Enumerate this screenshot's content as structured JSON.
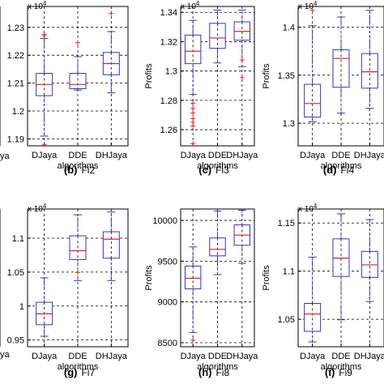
{
  "chart_data": [
    {
      "id": "b",
      "type": "boxplot",
      "caption_letter": "(b)",
      "caption_name": "Fi2",
      "ylabel": "Profits",
      "xlabel": "algorithms",
      "multiplier": "x 10",
      "multiplier_exp": "4",
      "categories": [
        "DJaya",
        "DDE",
        "DHJaya"
      ],
      "ylim": [
        1.1875,
        1.2375
      ],
      "yticks": [
        "1.19",
        "1.2",
        "1.21",
        "1.22",
        "1.23"
      ],
      "ytick_values": [
        1.19,
        1.2,
        1.21,
        1.22,
        1.23
      ],
      "grid": true,
      "boxes": [
        {
          "whisker_low": 1.191,
          "q1": 1.2055,
          "median": 1.2095,
          "q3": 1.2135,
          "whisker_high": 1.226,
          "outliers": [
            1.188,
            1.227,
            1.2275
          ]
        },
        {
          "whisker_low": 1.2075,
          "q1": 1.208,
          "median": 1.2095,
          "q3": 1.2135,
          "whisker_high": 1.2195,
          "outliers": [
            1.2245
          ]
        },
        {
          "whisker_low": 1.2065,
          "q1": 1.213,
          "median": 1.217,
          "q3": 1.221,
          "whisker_high": 1.2285,
          "outliers": [
            1.235
          ]
        }
      ]
    },
    {
      "id": "c",
      "type": "boxplot",
      "caption_letter": "(c)",
      "caption_name": "Fi3",
      "ylabel": "Profits",
      "xlabel": "algorithms",
      "multiplier": "x 10",
      "multiplier_exp": "4",
      "categories": [
        "DJaya",
        "DDE",
        "DHJaya"
      ],
      "ylim": [
        1.249,
        1.344
      ],
      "yticks": [
        "1.26",
        "1.28",
        "1.3",
        "1.32",
        "1.34"
      ],
      "ytick_values": [
        1.26,
        1.28,
        1.3,
        1.32,
        1.34
      ],
      "grid": true,
      "boxes": [
        {
          "whisker_low": 1.284,
          "q1": 1.305,
          "median": 1.3135,
          "q3": 1.3245,
          "whisker_high": 1.3345,
          "outliers": [
            1.2505,
            1.2625,
            1.265,
            1.2675,
            1.2715,
            1.2745,
            1.278
          ]
        },
        {
          "whisker_low": 1.3055,
          "q1": 1.3155,
          "median": 1.3225,
          "q3": 1.3325,
          "whisker_high": 1.3415,
          "outliers": []
        },
        {
          "whisker_low": 1.303,
          "q1": 1.321,
          "median": 1.327,
          "q3": 1.3335,
          "whisker_high": 1.3415,
          "outliers": [
            1.2955,
            1.3075
          ]
        }
      ]
    },
    {
      "id": "d",
      "type": "boxplot",
      "caption_letter": "(d)",
      "caption_name": "Fi4",
      "ylabel": "Profits",
      "xlabel": "algorithms",
      "multiplier": "x 10",
      "multiplier_exp": "4",
      "categories": [
        "DJaya",
        "DDE",
        "DHJaya"
      ],
      "ylim": [
        1.2765,
        1.4215
      ],
      "yticks": [
        "1.3",
        "1.35",
        "1.4"
      ],
      "ytick_values": [
        1.3,
        1.35,
        1.4
      ],
      "grid": true,
      "boxes": [
        {
          "whisker_low": 1.3015,
          "q1": 1.3065,
          "median": 1.3205,
          "q3": 1.3405,
          "whisker_high": 1.4015,
          "outliers": [
            1.4175
          ]
        },
        {
          "whisker_low": 1.3105,
          "q1": 1.3375,
          "median": 1.3675,
          "q3": 1.3765,
          "whisker_high": 1.4105,
          "outliers": []
        },
        {
          "whisker_low": 1.3155,
          "q1": 1.3365,
          "median": 1.3535,
          "q3": 1.3725,
          "whisker_high": 1.4175,
          "outliers": []
        }
      ]
    },
    {
      "id": "g",
      "type": "boxplot",
      "caption_letter": "(g)",
      "caption_name": "Fi7",
      "ylabel": "",
      "xlabel": "algorithms",
      "multiplier": "x 10",
      "multiplier_exp": "4",
      "categories": [
        "DJaya",
        "DDE",
        "DHJaya"
      ],
      "ylim": [
        0.94,
        1.143
      ],
      "yticks": [
        "0.95",
        "1",
        "1.05",
        "1.1"
      ],
      "ytick_values": [
        0.95,
        1.0,
        1.05,
        1.1
      ],
      "grid": true,
      "boxes": [
        {
          "whisker_low": 0.9555,
          "q1": 0.9725,
          "median": 0.9885,
          "q3": 1.0055,
          "whisker_high": 1.0415,
          "outliers": []
        },
        {
          "whisker_low": 1.0375,
          "q1": 1.0685,
          "median": 1.0815,
          "q3": 1.1035,
          "whisker_high": 1.1345,
          "outliers": [
            1.0495
          ]
        },
        {
          "whisker_low": 1.0375,
          "q1": 1.0705,
          "median": 1.0985,
          "q3": 1.1095,
          "whisker_high": 1.1385,
          "outliers": []
        }
      ]
    },
    {
      "id": "h",
      "type": "boxplot",
      "caption_letter": "(h)",
      "caption_name": "Fi8",
      "ylabel": "Profits",
      "xlabel": "algorithms",
      "multiplier": "",
      "multiplier_exp": "",
      "categories": [
        "DJaya",
        "DDE",
        "DHJaya"
      ],
      "ylim": [
        8450,
        10140
      ],
      "yticks": [
        "8500",
        "9000",
        "9500",
        "10000"
      ],
      "ytick_values": [
        8500,
        9000,
        9500,
        10000
      ],
      "grid": true,
      "boxes": [
        {
          "whisker_low": 8625,
          "q1": 9160,
          "median": 9290,
          "q3": 9440,
          "whisker_high": 9675,
          "outliers": [
            8530
          ]
        },
        {
          "whisker_low": 9335,
          "q1": 9565,
          "median": 9645,
          "q3": 9785,
          "whisker_high": 10115,
          "outliers": []
        },
        {
          "whisker_low": 9475,
          "q1": 9695,
          "median": 9820,
          "q3": 9945,
          "whisker_high": 10125,
          "outliers": []
        }
      ]
    },
    {
      "id": "i",
      "type": "boxplot",
      "caption_letter": "(i)",
      "caption_name": "Fi9",
      "ylabel": "Profits",
      "xlabel": "algorithms",
      "multiplier": "x 10",
      "multiplier_exp": "4",
      "categories": [
        "DJaya",
        "DDE",
        "DHJaya"
      ],
      "ylim": [
        1.0215,
        1.1645
      ],
      "yticks": [
        "1.05",
        "1.1",
        "1.15"
      ],
      "ytick_values": [
        1.05,
        1.1,
        1.15
      ],
      "grid": true,
      "boxes": [
        {
          "whisker_low": 1.0265,
          "q1": 1.0375,
          "median": 1.0555,
          "q3": 1.0665,
          "whisker_high": 1.1145,
          "outliers": []
        },
        {
          "whisker_low": 1.0495,
          "q1": 1.0945,
          "median": 1.1135,
          "q3": 1.1335,
          "whisker_high": 1.1595,
          "outliers": []
        },
        {
          "whisker_low": 1.0685,
          "q1": 1.0935,
          "median": 1.1065,
          "q3": 1.1205,
          "whisker_high": 1.1535,
          "outliers": []
        }
      ]
    }
  ],
  "left_partial": {
    "top_xtick": "ya",
    "bottom_xtick": "ya",
    "caption_fragment": "1"
  },
  "colors": {
    "box": "#3333cc",
    "median": "#dd2222",
    "outlier": "#ee2222",
    "grid": "#000000",
    "axis": "#000000"
  }
}
